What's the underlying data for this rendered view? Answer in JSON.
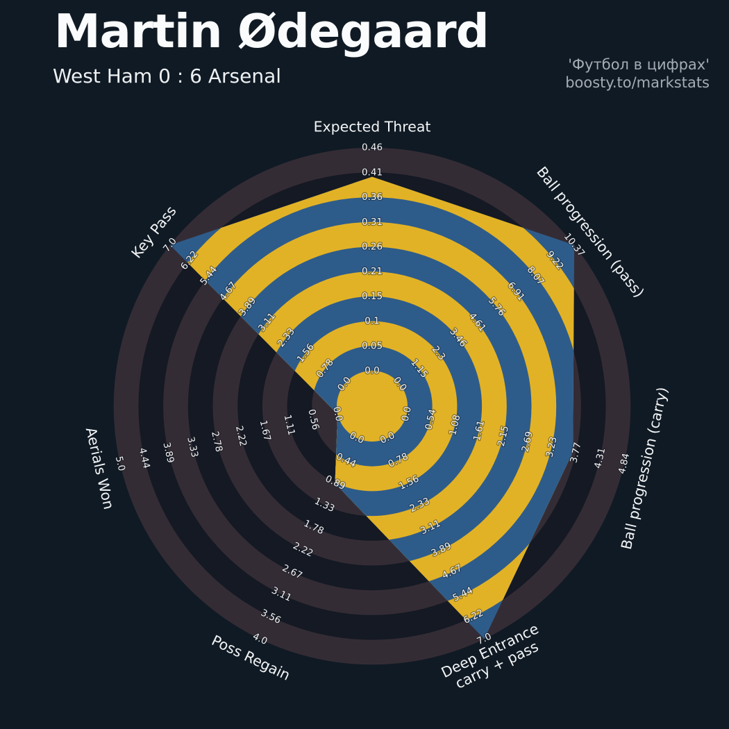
{
  "header": {
    "title": "Martin Ødegaard",
    "subtitle": "West Ham 0 : 6 Arsenal",
    "credit_line1": "'Футбол в цифрах'",
    "credit_line2": "boosty.to/markstats"
  },
  "chart_data": {
    "type": "radar",
    "legend": "none",
    "grid": "concentric-rings",
    "num_rings": 9,
    "axes": [
      {
        "label": "Expected Threat",
        "label_lines": [
          "Expected Threat"
        ],
        "max": 0.46,
        "value": 0.4,
        "ticks": [
          "0.0",
          "0.05",
          "0.1",
          "0.15",
          "0.21",
          "0.26",
          "0.31",
          "0.36",
          "0.41",
          "0.46"
        ]
      },
      {
        "label": "Ball progression (pass)",
        "label_lines": [
          "Ball progression (pass)"
        ],
        "max": 10.37,
        "value": 10.37,
        "ticks": [
          "0.0",
          "1.15",
          "2.3",
          "3.46",
          "4.61",
          "5.76",
          "6.91",
          "8.07",
          "9.22",
          "10.37"
        ]
      },
      {
        "label": "Ball progression (carry)",
        "label_lines": [
          "Ball progression (carry)"
        ],
        "max": 4.84,
        "value": 3.7,
        "ticks": [
          "0.0",
          "0.54",
          "1.08",
          "1.61",
          "2.15",
          "2.69",
          "3.23",
          "3.77",
          "4.31",
          "4.84"
        ]
      },
      {
        "label": "Deep Entrance carry + pass",
        "label_lines": [
          "Deep Entrance",
          "carry + pass"
        ],
        "max": 7.0,
        "value": 7.0,
        "ticks": [
          "0.0",
          "0.78",
          "1.56",
          "2.33",
          "3.11",
          "3.89",
          "4.67",
          "5.44",
          "6.22",
          "7.0"
        ]
      },
      {
        "label": "Poss Regain",
        "label_lines": [
          "Poss Regain"
        ],
        "max": 4.0,
        "value": 0.9,
        "ticks": [
          "0.0",
          "0.44",
          "0.89",
          "1.33",
          "1.78",
          "2.22",
          "2.67",
          "3.11",
          "3.56",
          "4.0"
        ]
      },
      {
        "label": "Aerials Won",
        "label_lines": [
          "Aerials Won"
        ],
        "max": 5.0,
        "value": 0.0,
        "ticks": [
          "0.0",
          "0.56",
          "1.11",
          "1.67",
          "2.22",
          "2.78",
          "3.33",
          "3.89",
          "4.44",
          "5.0"
        ]
      },
      {
        "label": "Key Pass",
        "label_lines": [
          "Key Pass"
        ],
        "max": 7.0,
        "value": 7.0,
        "ticks": [
          "0.0",
          "0.78",
          "1.56",
          "2.33",
          "3.11",
          "3.89",
          "4.67",
          "5.44",
          "6.22",
          "7.0"
        ]
      }
    ],
    "colors": {
      "background": "#101a24",
      "ring_odd_inside": "#2e5c8a",
      "ring_even_inside": "#e2b226",
      "ring_odd_outside": "#342c35",
      "ring_even_outside": "#141923",
      "center_circle": "#e2b226",
      "tick_text": "#f2f3f4",
      "axis_label_text": "#f3f5f6",
      "title_text": "#fafbfc",
      "subtitle_text": "#eef1f3",
      "credit_text": "#a4acb4"
    }
  }
}
